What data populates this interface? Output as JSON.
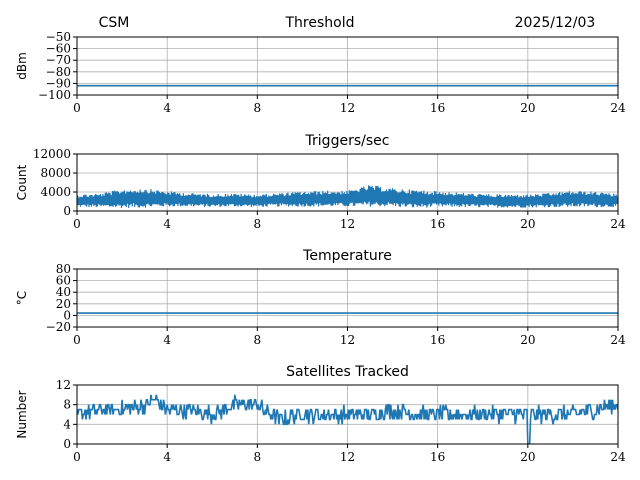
{
  "header": {
    "left": "CSM",
    "center": "Threshold",
    "right": "2025/12/03"
  },
  "colors": {
    "series": "#1f77b4",
    "grid": "#b0b0b0",
    "axis": "#000000"
  },
  "chart_data": [
    {
      "type": "line",
      "title": "Threshold",
      "xlabel": "",
      "ylabel": "dBm",
      "xlim": [
        0,
        24
      ],
      "ylim": [
        -100,
        -50
      ],
      "xticks": [
        0,
        4,
        8,
        12,
        16,
        20,
        24
      ],
      "xtick_labels": [
        "0",
        "4",
        "8",
        "12",
        "16",
        "20",
        "24"
      ],
      "yticks": [
        -100,
        -90,
        -80,
        -70,
        -60,
        -50
      ],
      "ytick_labels": [
        "−100",
        "−90",
        "−80",
        "−70",
        "−60",
        "−50"
      ],
      "grid": true,
      "series": [
        {
          "x": [
            0,
            4,
            8,
            12,
            16,
            20,
            24
          ],
          "y": [
            -92,
            -92,
            -92,
            -92,
            -92,
            -92,
            -92
          ]
        }
      ]
    },
    {
      "type": "line",
      "title": "Triggers/sec",
      "xlabel": "",
      "ylabel": "Count",
      "xlim": [
        0,
        24
      ],
      "ylim": [
        0,
        12000
      ],
      "xticks": [
        0,
        4,
        8,
        12,
        16,
        20,
        24
      ],
      "xtick_labels": [
        "0",
        "4",
        "8",
        "12",
        "16",
        "20",
        "24"
      ],
      "yticks": [
        0,
        4000,
        8000,
        12000
      ],
      "ytick_labels": [
        "0",
        "4000",
        "8000",
        "12000"
      ],
      "grid": true,
      "series": [
        {
          "x": [
            0,
            1,
            2,
            3,
            4,
            5,
            6,
            7,
            8,
            9,
            10,
            11,
            12,
            13,
            14,
            15,
            16,
            17,
            18,
            19,
            20,
            21,
            22,
            23,
            24
          ],
          "y_low": [
            800,
            700,
            600,
            700,
            900,
            900,
            800,
            900,
            800,
            900,
            900,
            900,
            900,
            900,
            900,
            600,
            800,
            800,
            700,
            700,
            700,
            800,
            800,
            800,
            800
          ],
          "y_high": [
            3500,
            3700,
            4600,
            4800,
            4200,
            3800,
            3600,
            3700,
            3500,
            3800,
            4100,
            4300,
            4300,
            5500,
            4800,
            4500,
            4200,
            3900,
            3600,
            3500,
            3500,
            3800,
            4300,
            4100,
            3600
          ]
        }
      ]
    },
    {
      "type": "line",
      "title": "Temperature",
      "xlabel": "",
      "ylabel": "°C",
      "xlim": [
        0,
        24
      ],
      "ylim": [
        -20,
        80
      ],
      "xticks": [
        0,
        4,
        8,
        12,
        16,
        20,
        24
      ],
      "xtick_labels": [
        "0",
        "4",
        "8",
        "12",
        "16",
        "20",
        "24"
      ],
      "yticks": [
        -20,
        0,
        20,
        40,
        60,
        80
      ],
      "ytick_labels": [
        "−20",
        "0",
        "20",
        "40",
        "60",
        "80"
      ],
      "grid": true,
      "series": [
        {
          "x": [
            0,
            4,
            8,
            12,
            16,
            20,
            24
          ],
          "y": [
            4,
            4,
            4,
            4,
            4,
            4,
            4
          ]
        }
      ]
    },
    {
      "type": "line",
      "title": "Satellites Tracked",
      "xlabel": "",
      "ylabel": "Number",
      "xlim": [
        0,
        24
      ],
      "ylim": [
        0,
        12
      ],
      "xticks": [
        0,
        4,
        8,
        12,
        16,
        20,
        24
      ],
      "xtick_labels": [
        "0",
        "4",
        "8",
        "12",
        "16",
        "20",
        "24"
      ],
      "yticks": [
        0,
        4,
        8,
        12
      ],
      "ytick_labels": [
        "0",
        "4",
        "8",
        "12"
      ],
      "grid": true,
      "series": [
        {
          "x": [
            0,
            1,
            2,
            3,
            3.5,
            4,
            5,
            6,
            7,
            8,
            8.5,
            9,
            10,
            11,
            12,
            13,
            14,
            15,
            16,
            17,
            18,
            19,
            20,
            20.1,
            21,
            22,
            23,
            24
          ],
          "y": [
            6,
            7,
            7,
            8,
            9,
            7,
            7,
            6,
            8,
            8,
            6,
            5,
            6,
            6,
            6,
            6,
            7,
            6,
            6,
            6,
            6,
            6,
            6,
            0,
            6,
            6,
            7,
            8
          ]
        }
      ]
    }
  ]
}
